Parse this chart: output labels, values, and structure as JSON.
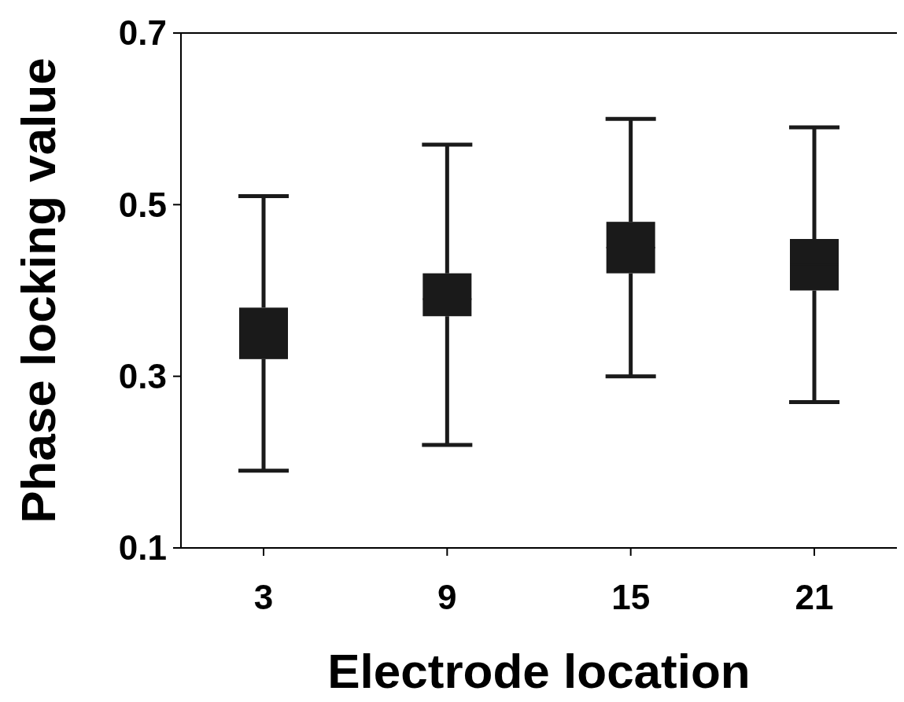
{
  "chart_data": {
    "type": "box",
    "xlabel": "Electrode location",
    "ylabel": "Phase locking value",
    "categories": [
      "3",
      "9",
      "15",
      "21"
    ],
    "boxes": [
      {
        "low": 0.19,
        "q1": 0.32,
        "median": 0.35,
        "q3": 0.38,
        "high": 0.51
      },
      {
        "low": 0.22,
        "q1": 0.37,
        "median": 0.39,
        "q3": 0.42,
        "high": 0.57
      },
      {
        "low": 0.3,
        "q1": 0.42,
        "median": 0.45,
        "q3": 0.48,
        "high": 0.6
      },
      {
        "low": 0.27,
        "q1": 0.4,
        "median": 0.43,
        "q3": 0.46,
        "high": 0.59
      }
    ],
    "color": "#1a1a1a",
    "ylim": [
      0.1,
      0.7
    ],
    "yticks": [
      0.1,
      0.3,
      0.5,
      0.7
    ],
    "grid": false
  }
}
